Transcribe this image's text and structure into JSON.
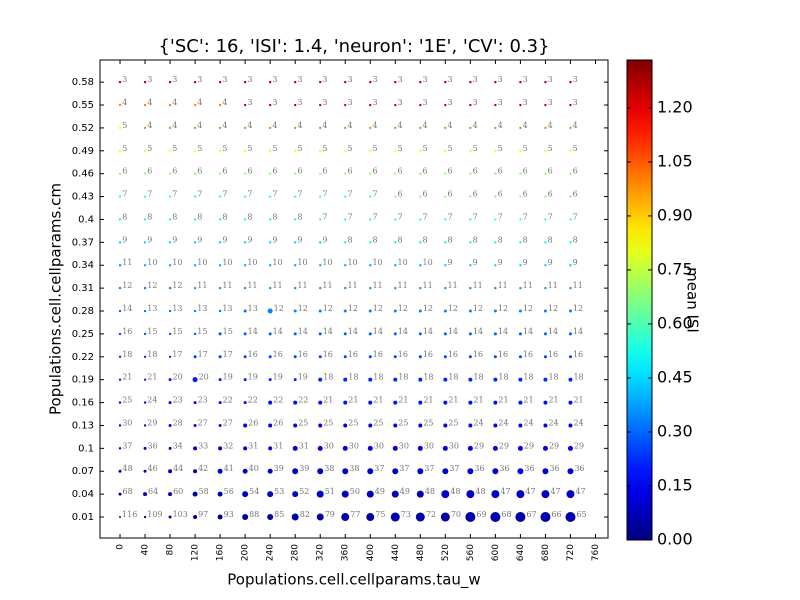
{
  "chart_data": {
    "type": "scatter",
    "title": "{'SC': 16, 'ISI': 1.4, 'neuron': '1E', 'CV': 0.3}",
    "x_label": "Populations.cell.cellparams.tau_w",
    "y_label": "Populations.cell.cellparams.cm",
    "x": [
      0,
      40,
      80,
      120,
      160,
      200,
      240,
      280,
      320,
      360,
      400,
      440,
      480,
      520,
      560,
      600,
      640,
      680,
      720
    ],
    "y": [
      0.01,
      0.04,
      0.07,
      0.1,
      0.13,
      0.16,
      0.19,
      0.22,
      0.25,
      0.28,
      0.31,
      0.34,
      0.37,
      0.4,
      0.43,
      0.46,
      0.49,
      0.52,
      0.55,
      0.58
    ],
    "xlim": [
      -32,
      780
    ],
    "ylim": [
      -0.0175,
      0.609
    ],
    "xticks": [
      0,
      40,
      80,
      120,
      160,
      200,
      240,
      280,
      320,
      360,
      400,
      440,
      480,
      520,
      560,
      600,
      640,
      680,
      720,
      760
    ],
    "yticks": [
      0.01,
      0.04,
      0.07,
      0.1,
      0.13,
      0.16,
      0.19,
      0.22,
      0.25,
      0.28,
      0.31,
      0.34,
      0.37,
      0.4,
      0.43,
      0.46,
      0.49,
      0.52,
      0.55,
      0.58
    ],
    "colormap": "jet",
    "labels": [
      [
        116,
        109,
        103,
        97,
        93,
        88,
        85,
        82,
        79,
        77,
        75,
        73,
        72,
        70,
        69,
        68,
        67,
        66,
        65
      ],
      [
        68,
        64,
        60,
        58,
        56,
        54,
        53,
        52,
        51,
        50,
        49,
        49,
        48,
        48,
        48,
        47,
        47,
        47,
        47
      ],
      [
        48,
        46,
        44,
        42,
        41,
        40,
        39,
        39,
        38,
        38,
        37,
        37,
        37,
        37,
        36,
        36,
        36,
        36,
        36
      ],
      [
        37,
        36,
        34,
        33,
        32,
        31,
        31,
        31,
        30,
        30,
        30,
        30,
        30,
        30,
        29,
        29,
        29,
        29,
        29
      ],
      [
        30,
        29,
        28,
        27,
        27,
        26,
        26,
        25,
        25,
        25,
        25,
        25,
        25,
        25,
        24,
        24,
        24,
        24,
        24
      ],
      [
        25,
        24,
        23,
        23,
        22,
        22,
        22,
        22,
        21,
        21,
        21,
        21,
        21,
        21,
        21,
        21,
        21,
        21,
        21
      ],
      [
        21,
        21,
        20,
        20,
        19,
        19,
        19,
        19,
        18,
        18,
        18,
        18,
        18,
        18,
        18,
        18,
        18,
        18,
        18
      ],
      [
        18,
        18,
        17,
        17,
        17,
        16,
        16,
        16,
        16,
        16,
        16,
        16,
        16,
        16,
        16,
        16,
        16,
        16,
        16
      ],
      [
        16,
        15,
        15,
        15,
        15,
        14,
        14,
        14,
        14,
        14,
        14,
        14,
        14,
        14,
        14,
        14,
        14,
        14,
        14
      ],
      [
        14,
        13,
        13,
        13,
        13,
        13,
        12,
        12,
        12,
        12,
        12,
        12,
        12,
        12,
        12,
        12,
        12,
        12,
        12
      ],
      [
        12,
        12,
        12,
        11,
        11,
        11,
        11,
        11,
        11,
        11,
        11,
        11,
        11,
        11,
        11,
        11,
        11,
        11,
        11
      ],
      [
        11,
        10,
        10,
        10,
        10,
        10,
        10,
        10,
        10,
        10,
        10,
        10,
        10,
        9,
        9,
        9,
        9,
        9,
        9
      ],
      [
        9,
        9,
        9,
        9,
        9,
        9,
        9,
        9,
        9,
        8,
        8,
        8,
        8,
        8,
        8,
        8,
        8,
        8,
        8
      ],
      [
        8,
        8,
        8,
        8,
        8,
        8,
        8,
        8,
        7,
        7,
        7,
        7,
        7,
        7,
        7,
        7,
        7,
        7,
        7
      ],
      [
        7,
        7,
        7,
        7,
        7,
        7,
        7,
        7,
        7,
        7,
        7,
        6,
        6,
        6,
        6,
        6,
        6,
        6,
        6
      ],
      [
        6,
        6,
        6,
        6,
        6,
        6,
        6,
        6,
        6,
        6,
        6,
        6,
        6,
        6,
        6,
        6,
        6,
        6,
        6
      ],
      [
        5,
        5,
        5,
        5,
        5,
        5,
        5,
        5,
        5,
        5,
        5,
        5,
        5,
        5,
        5,
        5,
        5,
        5,
        5
      ],
      [
        5,
        4,
        4,
        4,
        4,
        4,
        4,
        4,
        4,
        4,
        4,
        4,
        4,
        4,
        4,
        4,
        4,
        4,
        4
      ],
      [
        4,
        4,
        4,
        4,
        4,
        3,
        3,
        3,
        3,
        3,
        3,
        3,
        3,
        3,
        3,
        3,
        3,
        3,
        3
      ],
      [
        3,
        3,
        3,
        3,
        3,
        3,
        3,
        3,
        3,
        3,
        3,
        3,
        3,
        3,
        3,
        3,
        3,
        3,
        3
      ]
    ],
    "values": [
      [
        0.04,
        0.04,
        0.04,
        0.04,
        0.04,
        0.04,
        0.05,
        0.05,
        0.05,
        0.05,
        0.05,
        0.05,
        0.05,
        0.05,
        0.05,
        0.05,
        0.05,
        0.05,
        0.05
      ],
      [
        0.06,
        0.06,
        0.07,
        0.07,
        0.07,
        0.08,
        0.08,
        0.08,
        0.08,
        0.08,
        0.08,
        0.08,
        0.09,
        0.09,
        0.09,
        0.09,
        0.09,
        0.09,
        0.09
      ],
      [
        0.09,
        0.09,
        0.09,
        0.09,
        0.09,
        0.1,
        0.1,
        0.1,
        0.1,
        0.1,
        0.1,
        0.1,
        0.1,
        0.1,
        0.11,
        0.11,
        0.11,
        0.11,
        0.11
      ],
      [
        0.1,
        0.11,
        0.11,
        0.12,
        0.12,
        0.13,
        0.13,
        0.13,
        0.13,
        0.13,
        0.13,
        0.13,
        0.13,
        0.13,
        0.14,
        0.14,
        0.14,
        0.14,
        0.14
      ],
      [
        0.13,
        0.14,
        0.14,
        0.15,
        0.15,
        0.15,
        0.15,
        0.16,
        0.16,
        0.16,
        0.16,
        0.16,
        0.16,
        0.16,
        0.17,
        0.17,
        0.17,
        0.17,
        0.17
      ],
      [
        0.16,
        0.17,
        0.17,
        0.17,
        0.18,
        0.18,
        0.18,
        0.18,
        0.19,
        0.19,
        0.19,
        0.19,
        0.19,
        0.19,
        0.19,
        0.19,
        0.19,
        0.19,
        0.19
      ],
      [
        0.19,
        0.19,
        0.2,
        0.2,
        0.21,
        0.21,
        0.21,
        0.21,
        0.22,
        0.22,
        0.22,
        0.22,
        0.22,
        0.22,
        0.22,
        0.22,
        0.22,
        0.22,
        0.22
      ],
      [
        0.22,
        0.22,
        0.24,
        0.24,
        0.24,
        0.25,
        0.25,
        0.25,
        0.25,
        0.25,
        0.25,
        0.25,
        0.25,
        0.25,
        0.25,
        0.25,
        0.25,
        0.25,
        0.25
      ],
      [
        0.25,
        0.27,
        0.27,
        0.27,
        0.27,
        0.29,
        0.29,
        0.29,
        0.29,
        0.29,
        0.29,
        0.29,
        0.29,
        0.29,
        0.29,
        0.29,
        0.29,
        0.29,
        0.29
      ],
      [
        0.29,
        0.31,
        0.31,
        0.31,
        0.31,
        0.31,
        0.34,
        0.34,
        0.34,
        0.34,
        0.34,
        0.34,
        0.34,
        0.34,
        0.34,
        0.34,
        0.34,
        0.34,
        0.34
      ],
      [
        0.34,
        0.34,
        0.34,
        0.37,
        0.37,
        0.37,
        0.37,
        0.37,
        0.37,
        0.37,
        0.37,
        0.37,
        0.37,
        0.37,
        0.37,
        0.37,
        0.37,
        0.37,
        0.37
      ],
      [
        0.37,
        0.4,
        0.4,
        0.4,
        0.4,
        0.4,
        0.4,
        0.4,
        0.4,
        0.4,
        0.4,
        0.4,
        0.4,
        0.45,
        0.45,
        0.45,
        0.45,
        0.45,
        0.45
      ],
      [
        0.45,
        0.45,
        0.45,
        0.45,
        0.45,
        0.45,
        0.45,
        0.45,
        0.45,
        0.5,
        0.5,
        0.5,
        0.5,
        0.5,
        0.5,
        0.5,
        0.5,
        0.5,
        0.5
      ],
      [
        0.5,
        0.5,
        0.5,
        0.5,
        0.5,
        0.5,
        0.5,
        0.5,
        0.58,
        0.58,
        0.58,
        0.58,
        0.58,
        0.58,
        0.58,
        0.58,
        0.58,
        0.58,
        0.58
      ],
      [
        0.58,
        0.58,
        0.58,
        0.58,
        0.58,
        0.58,
        0.58,
        0.58,
        0.58,
        0.58,
        0.58,
        0.68,
        0.68,
        0.68,
        0.68,
        0.68,
        0.68,
        0.68,
        0.68
      ],
      [
        0.68,
        0.68,
        0.68,
        0.68,
        0.68,
        0.68,
        0.68,
        0.68,
        0.68,
        0.68,
        0.68,
        0.68,
        0.68,
        0.68,
        0.68,
        0.68,
        0.68,
        0.68,
        0.68
      ],
      [
        0.82,
        0.82,
        0.82,
        0.82,
        0.82,
        0.82,
        0.82,
        0.82,
        0.82,
        0.82,
        0.82,
        0.82,
        0.82,
        0.82,
        0.82,
        0.82,
        0.82,
        0.82,
        0.82
      ],
      [
        0.82,
        1.0,
        1.0,
        1.0,
        1.0,
        1.0,
        1.0,
        1.0,
        1.0,
        1.0,
        1.0,
        1.0,
        1.0,
        1.0,
        1.0,
        1.0,
        1.0,
        1.0,
        1.0
      ],
      [
        1.0,
        1.0,
        1.0,
        1.0,
        1.0,
        1.25,
        1.25,
        1.25,
        1.25,
        1.25,
        1.25,
        1.25,
        1.25,
        1.25,
        1.25,
        1.25,
        1.25,
        1.25,
        1.25
      ],
      [
        1.25,
        1.25,
        1.25,
        1.25,
        1.25,
        1.25,
        1.25,
        1.25,
        1.25,
        1.25,
        1.25,
        1.25,
        1.25,
        1.25,
        1.25,
        1.25,
        1.25,
        1.25,
        1.25
      ]
    ],
    "sizes": [
      [
        1,
        1.2,
        1.5,
        2,
        2.5,
        3,
        3,
        3.5,
        3.5,
        4,
        4,
        4.5,
        4.5,
        4.5,
        5,
        5,
        5,
        5,
        5
      ],
      [
        1.5,
        2,
        2,
        2.5,
        2.5,
        3,
        3,
        3,
        3.5,
        3.5,
        3.5,
        3.5,
        3.5,
        4,
        4,
        4,
        4,
        4,
        4
      ],
      [
        1.5,
        1.5,
        2,
        2,
        2.5,
        2.5,
        2.5,
        3,
        3,
        3,
        3,
        3,
        3,
        3,
        3,
        3,
        3,
        3,
        3
      ],
      [
        1.2,
        1.5,
        1.5,
        2,
        2,
        2,
        2,
        2.5,
        2.5,
        2.5,
        2.5,
        2.5,
        2.5,
        2.5,
        2.5,
        2.5,
        2.5,
        2.5,
        2.5
      ],
      [
        1.2,
        1.2,
        1.5,
        1.5,
        1.5,
        2,
        2,
        2,
        2,
        2,
        2,
        2,
        2,
        2,
        2,
        2,
        2,
        2,
        2
      ],
      [
        1.2,
        1.2,
        1.5,
        1.5,
        1.5,
        1.5,
        2,
        2,
        2,
        2,
        2,
        2,
        2,
        2,
        2,
        2,
        2,
        2,
        2
      ],
      [
        1.2,
        1.2,
        1.5,
        2.5,
        1.5,
        1.5,
        1.5,
        1.5,
        2,
        2,
        2,
        2,
        2,
        2,
        2,
        2,
        2,
        2,
        2
      ],
      [
        1.2,
        1.2,
        1.2,
        1.5,
        1.5,
        1.5,
        1.5,
        1.5,
        1.5,
        1.5,
        1.5,
        1.5,
        1.5,
        1.5,
        1.5,
        1.5,
        1.5,
        1.5,
        1.5
      ],
      [
        1.2,
        1.2,
        1.2,
        1.2,
        1.5,
        1.5,
        1.5,
        1.5,
        1.5,
        1.5,
        1.5,
        1.5,
        1.5,
        1.5,
        1.5,
        1.5,
        1.5,
        1.5,
        1.5
      ],
      [
        1.2,
        1.2,
        1.2,
        1.2,
        1.2,
        1.5,
        2.5,
        1.5,
        1.5,
        1.5,
        1.5,
        1.5,
        1.5,
        1.5,
        1.5,
        1.5,
        1.5,
        1.5,
        1.5
      ],
      [
        1.2,
        1.2,
        1.2,
        1.2,
        1.2,
        1.2,
        1.2,
        1.2,
        1.2,
        1.2,
        1.2,
        1.2,
        1.2,
        1.2,
        1.2,
        1.2,
        1.2,
        1.2,
        1.2
      ],
      [
        1.2,
        1.2,
        1.2,
        1.2,
        1.2,
        1.2,
        1.2,
        1.2,
        1.2,
        1.2,
        1.2,
        1.2,
        1.2,
        1.2,
        1.2,
        1.2,
        1.2,
        1.2,
        1.2
      ],
      [
        1.2,
        1.2,
        1.2,
        1.2,
        1.2,
        1.2,
        1.2,
        1.2,
        1.2,
        1.2,
        1.2,
        1.2,
        1.2,
        1.2,
        1.2,
        1.2,
        1.2,
        1.2,
        1.2
      ],
      [
        1.2,
        1.2,
        1.2,
        1.2,
        1.2,
        1.2,
        1.2,
        1.2,
        1.2,
        1.2,
        1.2,
        1.2,
        1.2,
        1.2,
        1.2,
        1.2,
        1.2,
        1.2,
        1.2
      ],
      [
        1.2,
        1.2,
        1.2,
        1.2,
        1.2,
        1.2,
        1.2,
        1.2,
        1.2,
        1.2,
        1.2,
        1.2,
        1.2,
        1.2,
        1.2,
        1.2,
        1.2,
        1.2,
        1.2
      ],
      [
        1.2,
        1.2,
        1.2,
        1.2,
        1.2,
        1.2,
        1.2,
        1.2,
        1.2,
        1.2,
        1.2,
        1.2,
        1.2,
        1.2,
        1.2,
        1.2,
        1.2,
        1.2,
        1.2
      ],
      [
        1.2,
        1.2,
        1.2,
        1.2,
        1.2,
        1.2,
        1.2,
        1.2,
        1.2,
        1.2,
        1.2,
        1.2,
        1.2,
        1.2,
        1.2,
        1.2,
        1.2,
        1.2,
        1.2
      ],
      [
        1.2,
        1.2,
        1.2,
        1.2,
        1.2,
        1.2,
        1.2,
        1.2,
        1.2,
        1.2,
        1.2,
        1.2,
        1.2,
        1.2,
        1.2,
        1.2,
        1.2,
        1.2,
        1.2
      ],
      [
        1.2,
        1.2,
        1.2,
        1.2,
        1.2,
        1.2,
        1.2,
        1.2,
        1.2,
        1.2,
        1.2,
        1.2,
        1.2,
        1.2,
        1.2,
        1.2,
        1.2,
        1.2,
        1.2
      ],
      [
        1.2,
        1.2,
        1.2,
        1.2,
        1.2,
        1.2,
        1.2,
        1.2,
        1.2,
        1.2,
        1.2,
        1.2,
        1.2,
        1.2,
        1.2,
        1.2,
        1.2,
        1.2,
        1.2
      ]
    ],
    "colorbar": {
      "label": "mean ISI",
      "lim": [
        0,
        1.333
      ],
      "ticks": [
        {
          "value": 0,
          "label": "0.00"
        },
        {
          "value": 0.15,
          "label": "0.15"
        },
        {
          "value": 0.3,
          "label": "0.30"
        },
        {
          "value": 0.45,
          "label": "0.45"
        },
        {
          "value": 0.6,
          "label": "0.60"
        },
        {
          "value": 0.75,
          "label": "0.75"
        },
        {
          "value": 0.9,
          "label": "0.90"
        },
        {
          "value": 1.05,
          "label": "1.05"
        },
        {
          "value": 1.2,
          "label": "1.20"
        }
      ]
    }
  }
}
